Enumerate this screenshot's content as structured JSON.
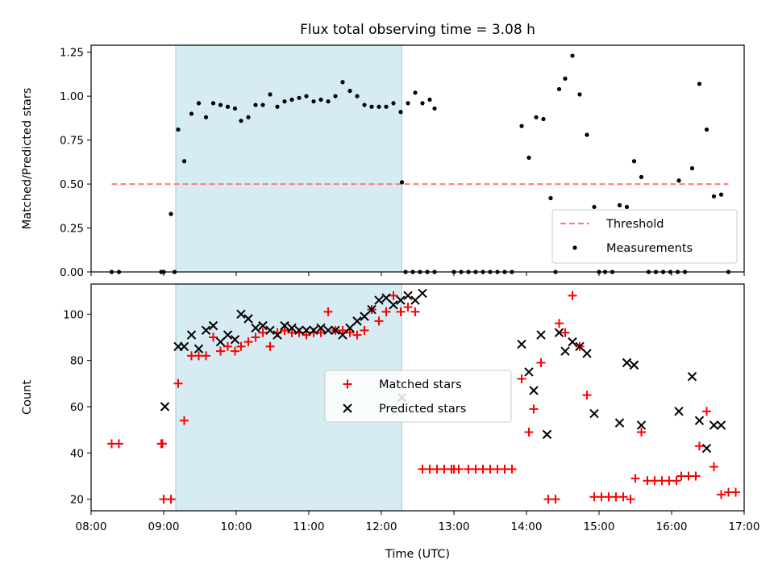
{
  "chart_data": [
    {
      "type": "scatter",
      "title": "Flux total observing time = 3.08 h",
      "xlabel": "",
      "ylabel": "Matched/Predicted stars",
      "xlim": [
        "08:00",
        "17:00"
      ],
      "ylim": [
        0,
        1.29
      ],
      "yticks": [
        "0.00",
        "0.25",
        "0.50",
        "0.75",
        "1.00",
        "1.25"
      ],
      "shaded_interval": [
        "09:10",
        "12:17"
      ],
      "legend_position": "lower right",
      "series": [
        {
          "name": "Threshold",
          "style": "dashed-line",
          "color": "#ff7b7b",
          "points": [
            [
              "08:17",
              0.5
            ],
            [
              "16:47",
              0.5
            ]
          ]
        },
        {
          "name": "Measurements",
          "style": "dot",
          "color": "#000000",
          "points": [
            [
              "08:17",
              0
            ],
            [
              "08:23",
              0
            ],
            [
              "08:58",
              0
            ],
            [
              "09:00",
              0
            ],
            [
              "09:00",
              0
            ],
            [
              "09:06",
              0.33
            ],
            [
              "09:09",
              0
            ],
            [
              "09:12",
              0.81
            ],
            [
              "09:17",
              0.63
            ],
            [
              "09:23",
              0.9
            ],
            [
              "09:29",
              0.96
            ],
            [
              "09:35",
              0.88
            ],
            [
              "09:41",
              0.96
            ],
            [
              "09:47",
              0.95
            ],
            [
              "09:53",
              0.94
            ],
            [
              "09:59",
              0.93
            ],
            [
              "10:04",
              0.86
            ],
            [
              "10:10",
              0.88
            ],
            [
              "10:16",
              0.95
            ],
            [
              "10:22",
              0.95
            ],
            [
              "10:28",
              1.01
            ],
            [
              "10:34",
              0.94
            ],
            [
              "10:40",
              0.97
            ],
            [
              "10:46",
              0.98
            ],
            [
              "10:52",
              0.99
            ],
            [
              "10:58",
              1.0
            ],
            [
              "11:04",
              0.97
            ],
            [
              "11:10",
              0.98
            ],
            [
              "11:16",
              0.97
            ],
            [
              "11:22",
              1.0
            ],
            [
              "11:28",
              1.08
            ],
            [
              "11:34",
              1.03
            ],
            [
              "11:40",
              1.0
            ],
            [
              "11:46",
              0.95
            ],
            [
              "11:52",
              0.94
            ],
            [
              "11:58",
              0.94
            ],
            [
              "12:04",
              0.94
            ],
            [
              "12:10",
              0.96
            ],
            [
              "12:16",
              0.91
            ],
            [
              "12:22",
              0.96
            ],
            [
              "12:28",
              1.02
            ],
            [
              "12:34",
              0.96
            ],
            [
              "12:40",
              0.98
            ],
            [
              "12:44",
              0.93
            ],
            [
              "12:17",
              0.51
            ],
            [
              "12:20",
              0
            ],
            [
              "12:26",
              0
            ],
            [
              "12:32",
              0
            ],
            [
              "12:38",
              0
            ],
            [
              "12:44",
              0
            ],
            [
              "13:00",
              0
            ],
            [
              "13:06",
              0
            ],
            [
              "13:12",
              0
            ],
            [
              "13:18",
              0
            ],
            [
              "13:24",
              0
            ],
            [
              "13:30",
              0
            ],
            [
              "13:36",
              0
            ],
            [
              "13:42",
              0
            ],
            [
              "13:48",
              0
            ],
            [
              "13:56",
              0.83
            ],
            [
              "14:02",
              0.65
            ],
            [
              "14:08",
              0.88
            ],
            [
              "14:14",
              0.87
            ],
            [
              "14:20",
              0.42
            ],
            [
              "14:24",
              0
            ],
            [
              "14:27",
              1.04
            ],
            [
              "14:32",
              1.1
            ],
            [
              "14:38",
              1.23
            ],
            [
              "14:44",
              1.01
            ],
            [
              "14:50",
              0.78
            ],
            [
              "14:56",
              0.37
            ],
            [
              "15:00",
              0
            ],
            [
              "15:05",
              0
            ],
            [
              "15:11",
              0
            ],
            [
              "15:17",
              0.38
            ],
            [
              "15:23",
              0.37
            ],
            [
              "15:29",
              0.63
            ],
            [
              "15:35",
              0.54
            ],
            [
              "15:41",
              0
            ],
            [
              "15:47",
              0
            ],
            [
              "15:53",
              0
            ],
            [
              "15:59",
              0
            ],
            [
              "16:05",
              0
            ],
            [
              "16:11",
              0
            ],
            [
              "16:06",
              0.52
            ],
            [
              "16:17",
              0.59
            ],
            [
              "16:23",
              1.07
            ],
            [
              "16:29",
              0.81
            ],
            [
              "16:35",
              0.43
            ],
            [
              "16:41",
              0.44
            ],
            [
              "16:47",
              0
            ]
          ]
        }
      ]
    },
    {
      "type": "scatter",
      "title": "",
      "xlabel": "Time (UTC)",
      "ylabel": "Count",
      "xlim": [
        "08:00",
        "17:00"
      ],
      "ylim": [
        15,
        113
      ],
      "xticks": [
        "08:00",
        "09:00",
        "10:00",
        "11:00",
        "12:00",
        "13:00",
        "14:00",
        "15:00",
        "16:00",
        "17:00"
      ],
      "yticks": [
        "20",
        "40",
        "60",
        "80",
        "100"
      ],
      "shaded_interval": [
        "09:10",
        "12:17"
      ],
      "legend_position": "center",
      "series": [
        {
          "name": "Matched stars",
          "style": "plus",
          "color": "#ff0000",
          "points": [
            [
              "08:17",
              44
            ],
            [
              "08:23",
              44
            ],
            [
              "08:58",
              44
            ],
            [
              "08:59",
              44
            ],
            [
              "09:00",
              20
            ],
            [
              "09:06",
              20
            ],
            [
              "09:12",
              70
            ],
            [
              "09:17",
              54
            ],
            [
              "09:23",
              82
            ],
            [
              "09:29",
              82
            ],
            [
              "09:35",
              82
            ],
            [
              "09:41",
              90
            ],
            [
              "09:47",
              84
            ],
            [
              "09:53",
              86
            ],
            [
              "09:59",
              84
            ],
            [
              "10:04",
              86
            ],
            [
              "10:10",
              88
            ],
            [
              "10:16",
              90
            ],
            [
              "10:22",
              92
            ],
            [
              "10:28",
              86
            ],
            [
              "10:34",
              92
            ],
            [
              "10:40",
              93
            ],
            [
              "10:46",
              92
            ],
            [
              "10:52",
              92
            ],
            [
              "10:58",
              91
            ],
            [
              "11:04",
              92
            ],
            [
              "11:10",
              92
            ],
            [
              "11:16",
              101
            ],
            [
              "11:22",
              93
            ],
            [
              "11:28",
              93
            ],
            [
              "11:34",
              92
            ],
            [
              "11:40",
              91
            ],
            [
              "11:46",
              93
            ],
            [
              "11:52",
              102
            ],
            [
              "11:58",
              97
            ],
            [
              "12:04",
              101
            ],
            [
              "12:10",
              108
            ],
            [
              "12:16",
              101
            ],
            [
              "12:22",
              103
            ],
            [
              "12:28",
              101
            ],
            [
              "12:34",
              33
            ],
            [
              "12:40",
              33
            ],
            [
              "12:46",
              33
            ],
            [
              "12:52",
              33
            ],
            [
              "12:58",
              33
            ],
            [
              "13:04",
              33
            ],
            [
              "13:00",
              33
            ],
            [
              "13:12",
              33
            ],
            [
              "13:18",
              33
            ],
            [
              "13:24",
              33
            ],
            [
              "13:30",
              33
            ],
            [
              "13:36",
              33
            ],
            [
              "13:42",
              33
            ],
            [
              "13:48",
              33
            ],
            [
              "13:56",
              72
            ],
            [
              "14:02",
              49
            ],
            [
              "14:06",
              59
            ],
            [
              "14:12",
              79
            ],
            [
              "14:18",
              20
            ],
            [
              "14:24",
              20
            ],
            [
              "14:27",
              96
            ],
            [
              "14:32",
              92
            ],
            [
              "14:38",
              108
            ],
            [
              "14:44",
              86
            ],
            [
              "14:50",
              65
            ],
            [
              "14:56",
              21
            ],
            [
              "15:02",
              21
            ],
            [
              "15:08",
              21
            ],
            [
              "15:14",
              21
            ],
            [
              "15:20",
              21
            ],
            [
              "15:26",
              20
            ],
            [
              "15:30",
              29
            ],
            [
              "15:35",
              49
            ],
            [
              "15:40",
              28
            ],
            [
              "15:46",
              28
            ],
            [
              "15:52",
              28
            ],
            [
              "15:58",
              28
            ],
            [
              "16:04",
              28
            ],
            [
              "16:08",
              30
            ],
            [
              "16:14",
              30
            ],
            [
              "16:20",
              30
            ],
            [
              "16:23",
              43
            ],
            [
              "16:29",
              58
            ],
            [
              "16:35",
              34
            ],
            [
              "16:41",
              22
            ],
            [
              "16:47",
              23
            ],
            [
              "16:53",
              23
            ]
          ]
        },
        {
          "name": "Predicted stars",
          "style": "x",
          "color": "#000000",
          "points": [
            [
              "09:01",
              60
            ],
            [
              "09:12",
              86
            ],
            [
              "09:17",
              86
            ],
            [
              "09:23",
              91
            ],
            [
              "09:29",
              85
            ],
            [
              "09:35",
              93
            ],
            [
              "09:41",
              95
            ],
            [
              "09:47",
              88
            ],
            [
              "09:53",
              91
            ],
            [
              "09:59",
              89
            ],
            [
              "10:04",
              100
            ],
            [
              "10:10",
              98
            ],
            [
              "10:16",
              94
            ],
            [
              "10:22",
              95
            ],
            [
              "10:28",
              93
            ],
            [
              "10:34",
              91
            ],
            [
              "10:40",
              95
            ],
            [
              "10:46",
              94
            ],
            [
              "10:52",
              93
            ],
            [
              "10:58",
              93
            ],
            [
              "11:04",
              93
            ],
            [
              "11:10",
              94
            ],
            [
              "11:16",
              93
            ],
            [
              "11:22",
              93
            ],
            [
              "11:28",
              91
            ],
            [
              "11:34",
              94
            ],
            [
              "11:40",
              97
            ],
            [
              "11:46",
              99
            ],
            [
              "11:52",
              102
            ],
            [
              "11:58",
              106
            ],
            [
              "12:04",
              107
            ],
            [
              "12:10",
              104
            ],
            [
              "12:16",
              106
            ],
            [
              "12:22",
              108
            ],
            [
              "12:28",
              106
            ],
            [
              "12:34",
              109
            ],
            [
              "12:17",
              64
            ],
            [
              "13:56",
              87
            ],
            [
              "14:02",
              75
            ],
            [
              "14:06",
              67
            ],
            [
              "14:12",
              91
            ],
            [
              "14:17",
              48
            ],
            [
              "14:27",
              92
            ],
            [
              "14:32",
              84
            ],
            [
              "14:38",
              88
            ],
            [
              "14:44",
              86
            ],
            [
              "14:50",
              83
            ],
            [
              "14:56",
              57
            ],
            [
              "15:17",
              53
            ],
            [
              "15:23",
              79
            ],
            [
              "15:29",
              78
            ],
            [
              "15:35",
              52
            ],
            [
              "16:06",
              58
            ],
            [
              "16:17",
              73
            ],
            [
              "16:23",
              54
            ],
            [
              "16:29",
              42
            ],
            [
              "16:35",
              52
            ],
            [
              "16:41",
              52
            ]
          ]
        }
      ]
    }
  ]
}
